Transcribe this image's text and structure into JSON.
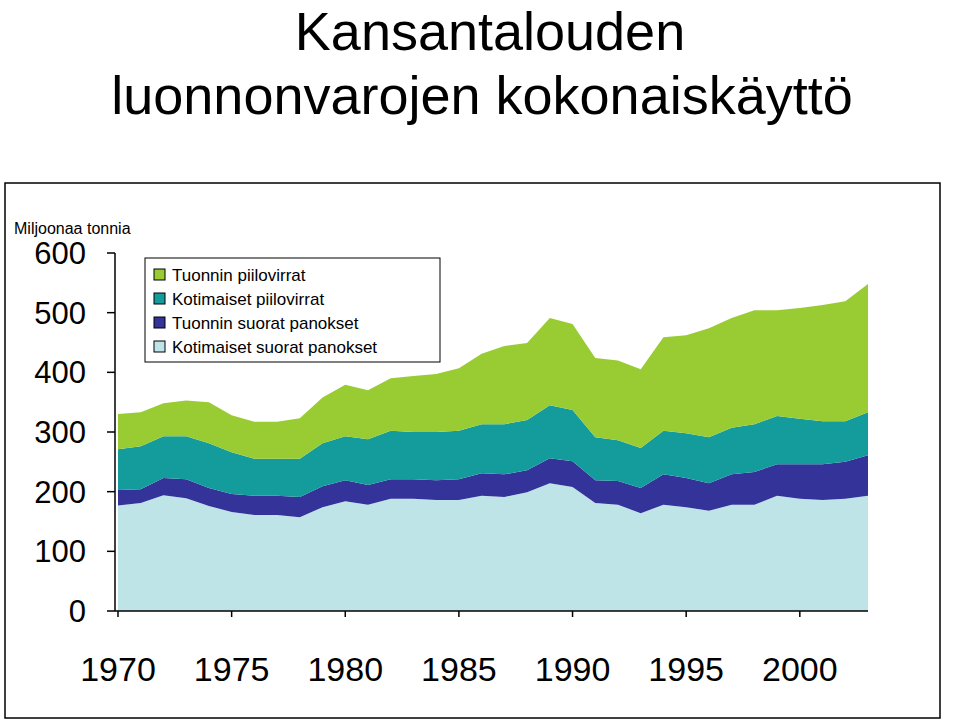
{
  "chart_data": {
    "type": "area",
    "stacked": true,
    "title": "Kansantalouden luonnonvarojen kokonaiskäyttö",
    "y_label": "Miljoonaa tonnia",
    "x": [
      1970,
      1971,
      1972,
      1973,
      1974,
      1975,
      1976,
      1977,
      1978,
      1979,
      1980,
      1981,
      1982,
      1983,
      1984,
      1985,
      1986,
      1987,
      1988,
      1989,
      1990,
      1991,
      1992,
      1993,
      1994,
      1995,
      1996,
      1997,
      1998,
      1999,
      2000,
      2001,
      2002,
      2003
    ],
    "xlim": [
      1970,
      2003
    ],
    "xticks": [
      1970,
      1975,
      1980,
      1985,
      1990,
      1995,
      2000
    ],
    "ylim": [
      0,
      600
    ],
    "yticks": [
      0,
      100,
      200,
      300,
      400,
      500,
      600
    ],
    "grid": false,
    "legend": "upper left",
    "series": [
      {
        "name": "Kotimaiset suorat panokset",
        "color": "#bfe4e8",
        "values": [
          177,
          181,
          194,
          189,
          176,
          166,
          161,
          161,
          157,
          174,
          184,
          178,
          188,
          188,
          186,
          186,
          193,
          191,
          199,
          214,
          208,
          181,
          178,
          164,
          178,
          174,
          168,
          178,
          178,
          193,
          188,
          186,
          188,
          193
        ]
      },
      {
        "name": "Tuonnin suorat panokset",
        "color": "#333399",
        "values": [
          26,
          23,
          29,
          32,
          30,
          30,
          32,
          32,
          34,
          35,
          35,
          33,
          33,
          33,
          33,
          35,
          38,
          38,
          37,
          42,
          43,
          38,
          40,
          42,
          51,
          49,
          46,
          51,
          55,
          53,
          58,
          60,
          62,
          68
        ]
      },
      {
        "name": "Kotimaiset piilovirrat",
        "color": "#149c9c",
        "values": [
          68,
          72,
          70,
          72,
          75,
          70,
          62,
          62,
          64,
          72,
          74,
          77,
          81,
          79,
          81,
          81,
          82,
          84,
          84,
          89,
          86,
          72,
          68,
          67,
          73,
          75,
          77,
          78,
          80,
          81,
          76,
          72,
          68,
          72
        ]
      },
      {
        "name": "Tuonnin piilovirrat",
        "color": "#99cc33",
        "values": [
          59,
          57,
          55,
          60,
          69,
          62,
          62,
          62,
          68,
          77,
          86,
          82,
          88,
          94,
          97,
          105,
          118,
          131,
          129,
          146,
          144,
          133,
          134,
          132,
          157,
          164,
          183,
          184,
          191,
          177,
          186,
          195,
          201,
          215
        ]
      }
    ]
  }
}
